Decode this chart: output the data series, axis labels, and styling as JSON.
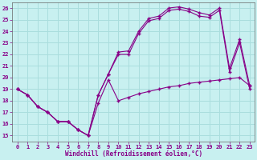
{
  "xlabel": "Windchill (Refroidissement éolien,°C)",
  "bg_color": "#c8f0f0",
  "grid_color": "#aadddd",
  "line_color": "#880088",
  "ylim": [
    14.5,
    26.5
  ],
  "xlim": [
    -0.5,
    23.5
  ],
  "yticks": [
    15,
    16,
    17,
    18,
    19,
    20,
    21,
    22,
    23,
    24,
    25,
    26
  ],
  "xticks": [
    0,
    1,
    2,
    3,
    4,
    5,
    6,
    7,
    8,
    9,
    10,
    11,
    12,
    13,
    14,
    15,
    16,
    17,
    18,
    19,
    20,
    21,
    22,
    23
  ],
  "series_zigzag_x": [
    0,
    1,
    2,
    3,
    4,
    5,
    6,
    7,
    8,
    9,
    10,
    11,
    12,
    13,
    14,
    15,
    16,
    17,
    18,
    19,
    20,
    21,
    22,
    23
  ],
  "series_zigzag_y": [
    19.0,
    18.5,
    17.5,
    17.0,
    16.2,
    16.2,
    15.5,
    15.0,
    17.8,
    19.8,
    18.0,
    18.3,
    18.6,
    18.8,
    19.0,
    19.2,
    19.3,
    19.5,
    19.6,
    19.7,
    19.8,
    19.9,
    20.0,
    19.3
  ],
  "series_upper1_x": [
    0,
    1,
    2,
    3,
    4,
    5,
    6,
    7,
    8,
    9,
    10,
    11,
    12,
    13,
    14,
    15,
    16,
    17,
    18,
    19,
    20,
    21,
    22,
    23
  ],
  "series_upper1_y": [
    19.0,
    18.5,
    17.5,
    17.0,
    16.2,
    16.2,
    15.5,
    15.0,
    18.5,
    20.3,
    22.2,
    22.3,
    24.0,
    25.1,
    25.3,
    26.0,
    26.1,
    25.9,
    25.6,
    25.4,
    26.0,
    20.8,
    23.3,
    19.3
  ],
  "series_upper2_x": [
    0,
    1,
    2,
    3,
    4,
    5,
    6,
    7,
    8,
    9,
    10,
    11,
    12,
    13,
    14,
    15,
    16,
    17,
    18,
    19,
    20,
    21,
    22,
    23
  ],
  "series_upper2_y": [
    19.0,
    18.5,
    17.5,
    17.0,
    16.2,
    16.2,
    15.5,
    15.0,
    18.5,
    20.3,
    22.0,
    22.0,
    23.8,
    24.9,
    25.1,
    25.8,
    25.9,
    25.7,
    25.3,
    25.2,
    25.8,
    20.5,
    23.0,
    19.0
  ]
}
